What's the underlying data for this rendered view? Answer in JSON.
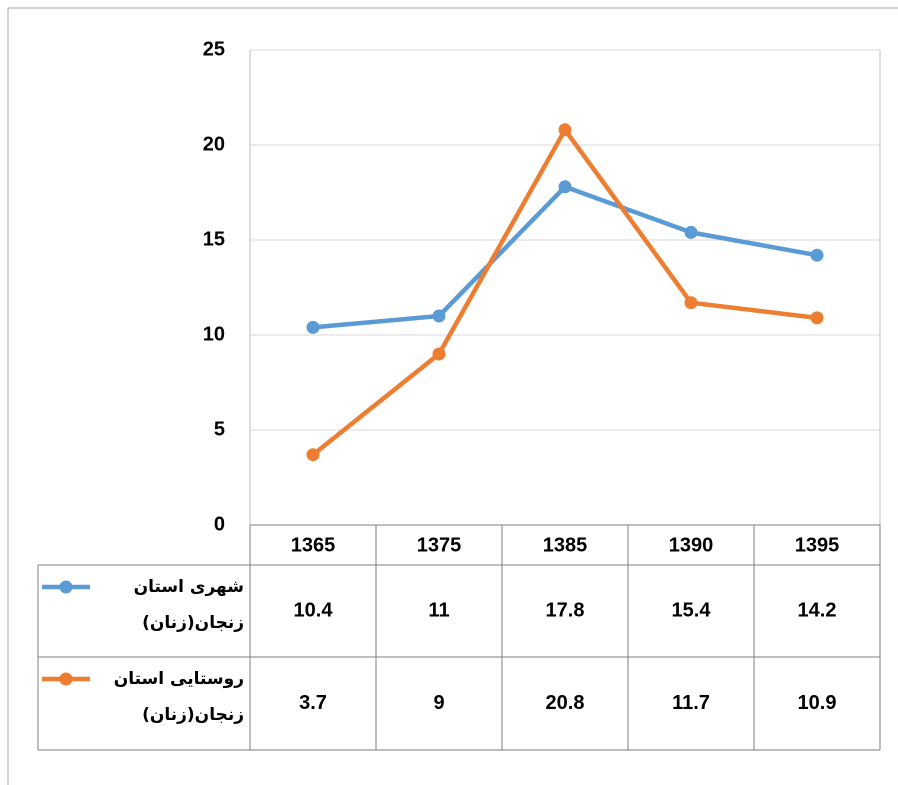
{
  "chart_data": {
    "type": "line",
    "categories": [
      "1365",
      "1375",
      "1385",
      "1390",
      "1395"
    ],
    "series": [
      {
        "name": "شهری استان زنجان(زنان)",
        "color": "#5b9bd5",
        "values": [
          10.4,
          11,
          17.8,
          15.4,
          14.2
        ]
      },
      {
        "name": "روستایی استان زنجان(زنان)",
        "color": "#ed7d31",
        "values": [
          3.7,
          9,
          20.8,
          11.7,
          10.9
        ]
      }
    ],
    "ylim": [
      0,
      25
    ],
    "yticks": [
      0,
      5,
      10,
      15,
      20,
      25
    ],
    "grid": true,
    "data_table": true
  }
}
